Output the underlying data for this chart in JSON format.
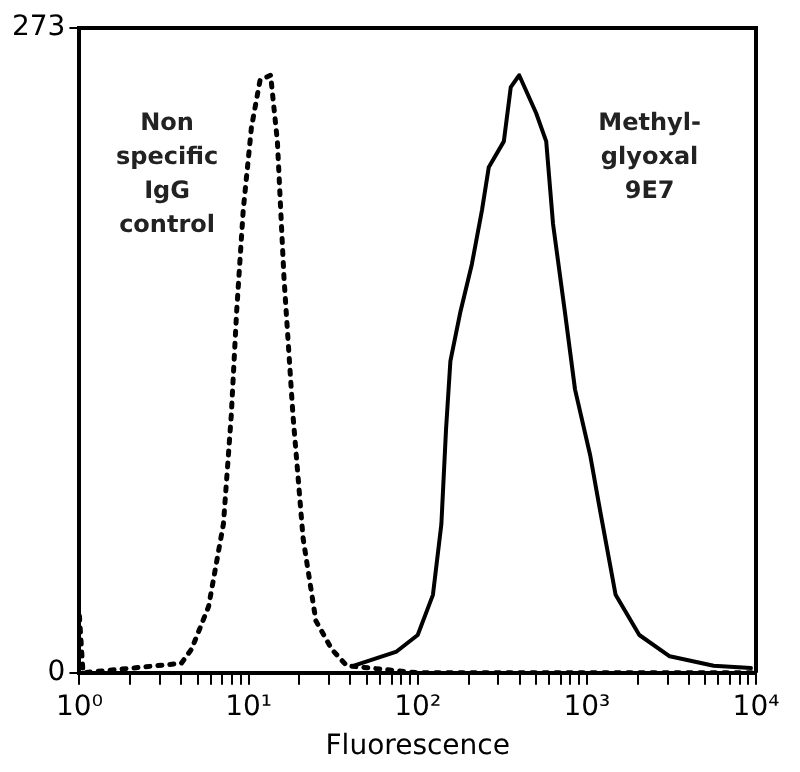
{
  "chart_data": {
    "type": "line",
    "xlabel": "Fluorescence",
    "log": "x",
    "xlim": [
      1,
      10000
    ],
    "ylim": [
      0,
      273
    ],
    "xticks": [
      {
        "value": 1,
        "label": "10⁰"
      },
      {
        "value": 2,
        "label": null
      },
      {
        "value": 3,
        "label": null
      },
      {
        "value": 4,
        "label": null
      },
      {
        "value": 5,
        "label": null
      },
      {
        "value": 6,
        "label": null
      },
      {
        "value": 7,
        "label": null
      },
      {
        "value": 8,
        "label": null
      },
      {
        "value": 9,
        "label": null
      },
      {
        "value": 10,
        "label": "10¹"
      },
      {
        "value": 20,
        "label": null
      },
      {
        "value": 30,
        "label": null
      },
      {
        "value": 40,
        "label": null
      },
      {
        "value": 50,
        "label": null
      },
      {
        "value": 60,
        "label": null
      },
      {
        "value": 70,
        "label": null
      },
      {
        "value": 80,
        "label": null
      },
      {
        "value": 90,
        "label": null
      },
      {
        "value": 100,
        "label": "10²"
      },
      {
        "value": 200,
        "label": null
      },
      {
        "value": 300,
        "label": null
      },
      {
        "value": 400,
        "label": null
      },
      {
        "value": 500,
        "label": null
      },
      {
        "value": 600,
        "label": null
      },
      {
        "value": 700,
        "label": null
      },
      {
        "value": 800,
        "label": null
      },
      {
        "value": 900,
        "label": null
      },
      {
        "value": 1000,
        "label": "10³"
      },
      {
        "value": 2000,
        "label": null
      },
      {
        "value": 3000,
        "label": null
      },
      {
        "value": 4000,
        "label": null
      },
      {
        "value": 5000,
        "label": null
      },
      {
        "value": 6000,
        "label": null
      },
      {
        "value": 7000,
        "label": null
      },
      {
        "value": 8000,
        "label": null
      },
      {
        "value": 9000,
        "label": null
      },
      {
        "value": 10000,
        "label": "10⁴"
      }
    ],
    "yticks": [
      0,
      273
    ],
    "grid": false,
    "legend": false,
    "marker": "none",
    "series": [
      {
        "name": "Non specific IgG control",
        "color": "#000000",
        "line_style": "dotted",
        "x": [
          1,
          1.05,
          4.0,
          4.6,
          5.8,
          7.1,
          7.9,
          8.5,
          9.3,
          10.4,
          11.7,
          13.5,
          14.8,
          16.2,
          18.3,
          21,
          25,
          31,
          38,
          100,
          1000,
          10000
        ],
        "values": [
          24,
          0,
          4,
          10,
          28,
          63,
          109,
          153,
          196,
          231,
          251,
          253,
          225,
          167,
          109,
          57,
          22,
          10,
          3,
          0,
          0,
          0
        ]
      },
      {
        "name": "Methyl-glyoxal 9E7",
        "color": "#000000",
        "line_style": "solid",
        "x": [
          42,
          75,
          100,
          123,
          138,
          147,
          156,
          179,
          209,
          240,
          263,
          323,
          355,
          398,
          501,
          575,
          631,
          741,
          851,
          1047,
          1202,
          1479,
          2042,
          3090,
          5620,
          9333
        ],
        "values": [
          3,
          9,
          16,
          33,
          63,
          103,
          132,
          153,
          173,
          196,
          214,
          225,
          248,
          253,
          237,
          225,
          190,
          153,
          120,
          92,
          68,
          33,
          16,
          7,
          3,
          2
        ]
      }
    ]
  }
}
